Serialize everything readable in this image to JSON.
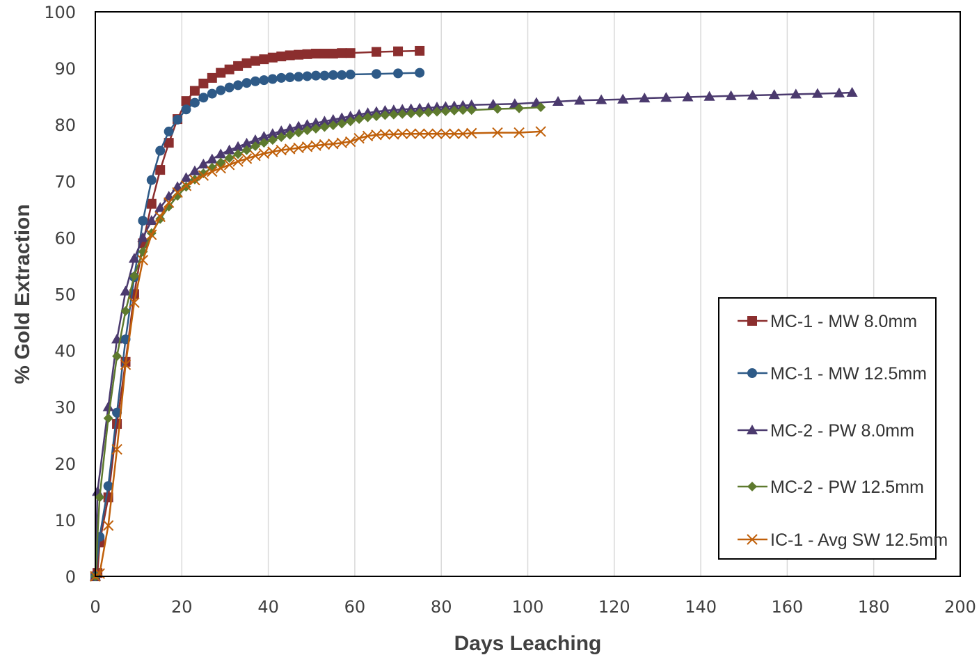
{
  "chart_data": {
    "type": "line",
    "title": "",
    "xlabel": "Days Leaching",
    "ylabel": "% Gold Extraction",
    "xlim": [
      0,
      200
    ],
    "ylim": [
      0,
      100
    ],
    "xticks": [
      "0",
      "20",
      "40",
      "60",
      "80",
      "100",
      "120",
      "140",
      "160",
      "180",
      "200"
    ],
    "yticks": [
      "0",
      "10",
      "20",
      "30",
      "40",
      "50",
      "60",
      "70",
      "80",
      "90",
      "100"
    ],
    "grid": "vertical",
    "legend": "bottom-right",
    "series": [
      {
        "name": "MC-1 - MW 8.0mm",
        "color": "#8B2E2E",
        "marker": "square",
        "points": [
          [
            0,
            0
          ],
          [
            0.5,
            0.6
          ],
          [
            1,
            6
          ],
          [
            3,
            14
          ],
          [
            5,
            27
          ],
          [
            7,
            38
          ],
          [
            9,
            50
          ],
          [
            11,
            59
          ],
          [
            13,
            66
          ],
          [
            15,
            72
          ],
          [
            17,
            76.8
          ],
          [
            19,
            81
          ],
          [
            21,
            84.2
          ],
          [
            23,
            86
          ],
          [
            25,
            87.3
          ],
          [
            27,
            88.3
          ],
          [
            29,
            89.2
          ],
          [
            31,
            89.8
          ],
          [
            33,
            90.4
          ],
          [
            35,
            90.9
          ],
          [
            37,
            91.3
          ],
          [
            39,
            91.6
          ],
          [
            41,
            91.9
          ],
          [
            43,
            92.1
          ],
          [
            45,
            92.3
          ],
          [
            47,
            92.4
          ],
          [
            49,
            92.5
          ],
          [
            51,
            92.6
          ],
          [
            53,
            92.6
          ],
          [
            55,
            92.6
          ],
          [
            57,
            92.7
          ],
          [
            59,
            92.7
          ],
          [
            65,
            92.9
          ],
          [
            70,
            93.0
          ],
          [
            75,
            93.1
          ]
        ]
      },
      {
        "name": "MC-1 - MW 12.5mm",
        "color": "#2E5A87",
        "marker": "circle",
        "points": [
          [
            0,
            0
          ],
          [
            1,
            7
          ],
          [
            3,
            16
          ],
          [
            5,
            29
          ],
          [
            7,
            42
          ],
          [
            9,
            53
          ],
          [
            11,
            63
          ],
          [
            13,
            70.2
          ],
          [
            15,
            75.4
          ],
          [
            17,
            78.8
          ],
          [
            19,
            80.9
          ],
          [
            21,
            82.7
          ],
          [
            23,
            83.9
          ],
          [
            25,
            84.8
          ],
          [
            27,
            85.5
          ],
          [
            29,
            86.1
          ],
          [
            31,
            86.6
          ],
          [
            33,
            87.0
          ],
          [
            35,
            87.4
          ],
          [
            37,
            87.7
          ],
          [
            39,
            87.9
          ],
          [
            41,
            88.1
          ],
          [
            43,
            88.3
          ],
          [
            45,
            88.4
          ],
          [
            47,
            88.5
          ],
          [
            49,
            88.6
          ],
          [
            51,
            88.7
          ],
          [
            53,
            88.7
          ],
          [
            55,
            88.8
          ],
          [
            57,
            88.8
          ],
          [
            59,
            88.9
          ],
          [
            65,
            89.0
          ],
          [
            70,
            89.1
          ],
          [
            75,
            89.2
          ]
        ]
      },
      {
        "name": "MC-2 - PW 8.0mm",
        "color": "#4B3A6E",
        "marker": "triangle",
        "points": [
          [
            0,
            0
          ],
          [
            0.5,
            15
          ],
          [
            3,
            30
          ],
          [
            5,
            42
          ],
          [
            7,
            50.5
          ],
          [
            9,
            56.3
          ],
          [
            11,
            60
          ],
          [
            13,
            63
          ],
          [
            15,
            65.3
          ],
          [
            17,
            67.3
          ],
          [
            19,
            69
          ],
          [
            21,
            70.6
          ],
          [
            23,
            71.8
          ],
          [
            25,
            73
          ],
          [
            27,
            73.9
          ],
          [
            29,
            74.8
          ],
          [
            31,
            75.5
          ],
          [
            33,
            76.1
          ],
          [
            35,
            76.7
          ],
          [
            37,
            77.3
          ],
          [
            39,
            77.9
          ],
          [
            41,
            78.4
          ],
          [
            43,
            78.9
          ],
          [
            45,
            79.3
          ],
          [
            47,
            79.7
          ],
          [
            49,
            80
          ],
          [
            51,
            80.3
          ],
          [
            53,
            80.6
          ],
          [
            55,
            80.9
          ],
          [
            57,
            81.2
          ],
          [
            59,
            81.5
          ],
          [
            61,
            81.8
          ],
          [
            63,
            82.1
          ],
          [
            65,
            82.3
          ],
          [
            67,
            82.5
          ],
          [
            69,
            82.6
          ],
          [
            71,
            82.7
          ],
          [
            73,
            82.8
          ],
          [
            75,
            82.9
          ],
          [
            77,
            83
          ],
          [
            79,
            83.1
          ],
          [
            81,
            83.2
          ],
          [
            83,
            83.3
          ],
          [
            85,
            83.4
          ],
          [
            87,
            83.5
          ],
          [
            92,
            83.6
          ],
          [
            97,
            83.7
          ],
          [
            102,
            83.9
          ],
          [
            107,
            84.1
          ],
          [
            112,
            84.3
          ],
          [
            117,
            84.4
          ],
          [
            122,
            84.5
          ],
          [
            127,
            84.7
          ],
          [
            132,
            84.8
          ],
          [
            137,
            84.9
          ],
          [
            142,
            85
          ],
          [
            147,
            85.1
          ],
          [
            152,
            85.2
          ],
          [
            157,
            85.3
          ],
          [
            162,
            85.4
          ],
          [
            167,
            85.5
          ],
          [
            172,
            85.6
          ],
          [
            175,
            85.7
          ]
        ]
      },
      {
        "name": "MC-2 - PW 12.5mm",
        "color": "#5E7A2E",
        "marker": "diamond",
        "points": [
          [
            0,
            0
          ],
          [
            1,
            14
          ],
          [
            3,
            28
          ],
          [
            5,
            39
          ],
          [
            7,
            47
          ],
          [
            9,
            53.2
          ],
          [
            11,
            57.5
          ],
          [
            13,
            60.8
          ],
          [
            15,
            63.3
          ],
          [
            17,
            65.5
          ],
          [
            19,
            67.4
          ],
          [
            21,
            69
          ],
          [
            23,
            70.3
          ],
          [
            25,
            71.4
          ],
          [
            27,
            72.4
          ],
          [
            29,
            73.3
          ],
          [
            31,
            74.1
          ],
          [
            33,
            74.8
          ],
          [
            35,
            75.5
          ],
          [
            37,
            76.2
          ],
          [
            39,
            76.8
          ],
          [
            41,
            77.3
          ],
          [
            43,
            77.8
          ],
          [
            45,
            78.2
          ],
          [
            47,
            78.6
          ],
          [
            49,
            79
          ],
          [
            51,
            79.3
          ],
          [
            53,
            79.6
          ],
          [
            55,
            79.9
          ],
          [
            57,
            80.2
          ],
          [
            59,
            80.6
          ],
          [
            61,
            81
          ],
          [
            63,
            81.3
          ],
          [
            65,
            81.5
          ],
          [
            67,
            81.7
          ],
          [
            69,
            81.8
          ],
          [
            71,
            81.9
          ],
          [
            73,
            82
          ],
          [
            75,
            82.1
          ],
          [
            77,
            82.2
          ],
          [
            79,
            82.3
          ],
          [
            81,
            82.4
          ],
          [
            83,
            82.5
          ],
          [
            85,
            82.6
          ],
          [
            87,
            82.6
          ],
          [
            93,
            82.8
          ],
          [
            98,
            82.9
          ],
          [
            103,
            83.1
          ]
        ]
      },
      {
        "name": "IC-1 - Avg SW 12.5mm",
        "color": "#C0600A",
        "marker": "x",
        "points": [
          [
            0,
            0
          ],
          [
            1,
            0.5
          ],
          [
            3,
            9
          ],
          [
            5,
            22.5
          ],
          [
            7,
            37.5
          ],
          [
            9,
            48.5
          ],
          [
            11,
            56
          ],
          [
            13,
            60.5
          ],
          [
            15,
            63.7
          ],
          [
            17,
            66.2
          ],
          [
            19,
            68
          ],
          [
            21,
            69.2
          ],
          [
            23,
            70.2
          ],
          [
            25,
            71
          ],
          [
            27,
            71.7
          ],
          [
            29,
            72.3
          ],
          [
            31,
            72.9
          ],
          [
            33,
            73.5
          ],
          [
            35,
            74
          ],
          [
            37,
            74.5
          ],
          [
            39,
            74.9
          ],
          [
            41,
            75.2
          ],
          [
            43,
            75.5
          ],
          [
            45,
            75.7
          ],
          [
            47,
            75.9
          ],
          [
            49,
            76.1
          ],
          [
            51,
            76.3
          ],
          [
            53,
            76.5
          ],
          [
            55,
            76.6
          ],
          [
            57,
            76.8
          ],
          [
            59,
            77
          ],
          [
            61,
            77.6
          ],
          [
            63,
            78
          ],
          [
            65,
            78.2
          ],
          [
            67,
            78.3
          ],
          [
            69,
            78.3
          ],
          [
            71,
            78.4
          ],
          [
            73,
            78.4
          ],
          [
            75,
            78.4
          ],
          [
            77,
            78.4
          ],
          [
            79,
            78.4
          ],
          [
            81,
            78.4
          ],
          [
            83,
            78.4
          ],
          [
            85,
            78.4
          ],
          [
            87,
            78.5
          ],
          [
            93,
            78.6
          ],
          [
            98,
            78.6
          ],
          [
            103,
            78.8
          ]
        ]
      }
    ]
  }
}
